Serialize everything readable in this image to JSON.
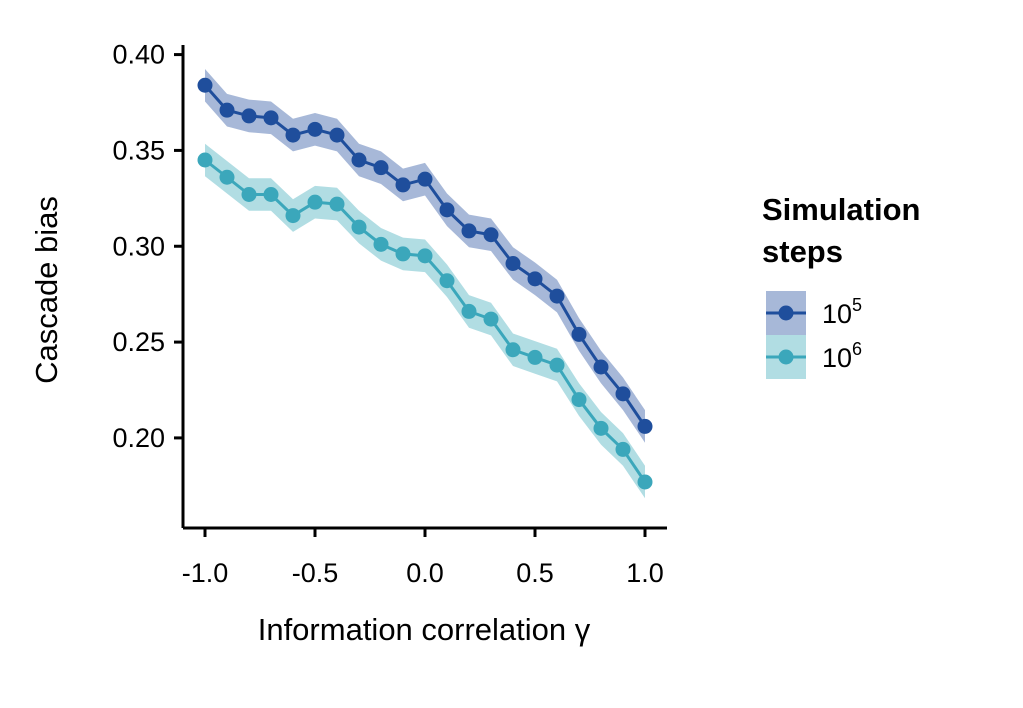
{
  "chart_data": {
    "type": "line",
    "xlabel": "Information correlation γ",
    "ylabel": "Cascade bias",
    "xlim": [
      -1.1,
      1.1
    ],
    "ylim": [
      0.153,
      0.405
    ],
    "x_ticks": [
      -1.0,
      -0.5,
      0.0,
      0.5,
      1.0
    ],
    "x_tick_labels": [
      "-1.0",
      "-0.5",
      "0.0",
      "0.5",
      "1.0"
    ],
    "y_ticks": [
      0.2,
      0.25,
      0.3,
      0.35,
      0.4
    ],
    "y_tick_labels": [
      "0.20",
      "0.25",
      "0.30",
      "0.35",
      "0.40"
    ],
    "grid": false,
    "legend": {
      "title_lines": [
        "Simulation",
        "steps"
      ],
      "placement": "right"
    },
    "x": [
      -1.0,
      -0.9,
      -0.8,
      -0.7,
      -0.6,
      -0.5,
      -0.4,
      -0.3,
      -0.2,
      -0.1,
      0.0,
      0.1,
      0.2,
      0.3,
      0.4,
      0.5,
      0.6,
      0.7,
      0.8,
      0.9,
      1.0
    ],
    "series": [
      {
        "name": "10^5",
        "label_base": "10",
        "label_exp": "5",
        "line_color": "#1f4e9c",
        "band_color": "#a7b8d8",
        "values": [
          0.384,
          0.371,
          0.368,
          0.367,
          0.358,
          0.361,
          0.358,
          0.345,
          0.341,
          0.332,
          0.335,
          0.319,
          0.308,
          0.306,
          0.291,
          0.283,
          0.274,
          0.254,
          0.237,
          0.223,
          0.206
        ],
        "band_half_width": 0.0085
      },
      {
        "name": "10^6",
        "label_base": "10",
        "label_exp": "6",
        "line_color": "#3ba7bb",
        "band_color": "#b1dde3",
        "values": [
          0.345,
          0.336,
          0.327,
          0.327,
          0.316,
          0.323,
          0.322,
          0.31,
          0.301,
          0.296,
          0.295,
          0.282,
          0.266,
          0.262,
          0.246,
          0.242,
          0.238,
          0.22,
          0.205,
          0.194,
          0.177
        ],
        "band_half_width": 0.0085
      }
    ]
  }
}
